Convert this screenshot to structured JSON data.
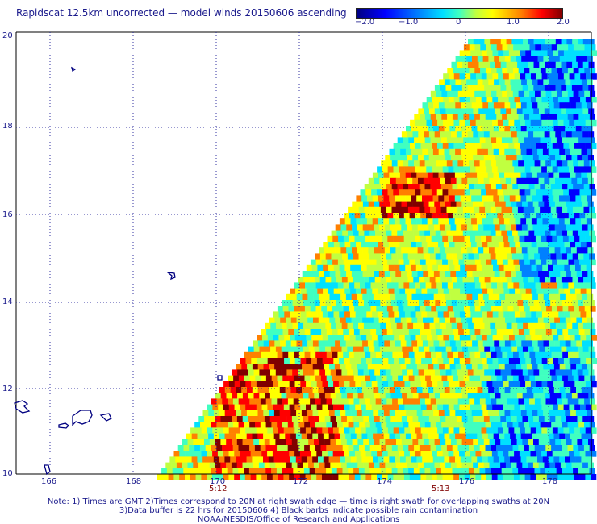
{
  "title": "Rapidscat 12.5km uncorrected — model winds 20150606 ascending",
  "colorbar": {
    "labels": [
      "−2.0",
      "−1.0",
      "0",
      "1.0",
      "2.0"
    ],
    "colors": [
      "#000080",
      "#0000ff",
      "#0080ff",
      "#00e0ff",
      "#40ffc0",
      "#c0ff40",
      "#ffff00",
      "#ff8000",
      "#ff0000",
      "#800000"
    ]
  },
  "map": {
    "lat_labels": [
      "20",
      "18",
      "16",
      "14",
      "12",
      "10"
    ],
    "lon_labels": [
      "166",
      "168",
      "170",
      "172",
      "174",
      "176",
      "178"
    ],
    "time_labels": [
      "5:12",
      "5:13"
    ],
    "grid_color": "#3030a0",
    "coast_color": "#000080"
  },
  "notes": [
    "Note: 1) Times are GMT 2)Times correspond to 20N at right swath edge — time is right swath for overlapping swaths at 20N",
    "3)Data buffer is 22 hrs for 20150606 4) Black barbs indicate possible rain contamination",
    "NOAA/NESDIS/Office of Research and Applications"
  ]
}
